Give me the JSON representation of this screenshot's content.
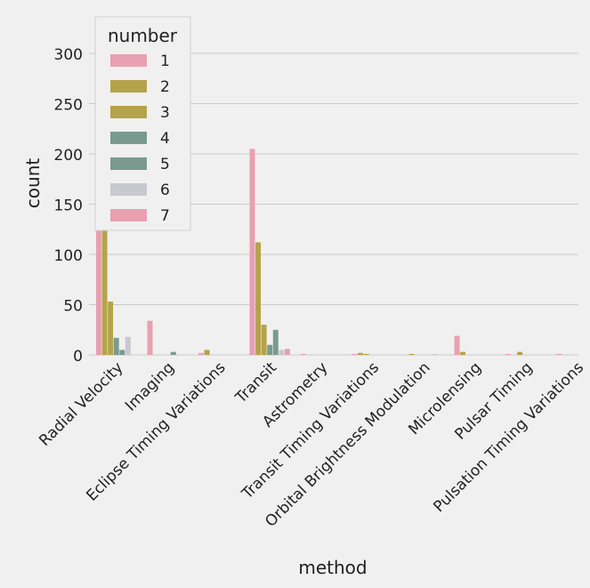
{
  "chart_data": {
    "type": "bar",
    "xlabel": "method",
    "ylabel": "count",
    "ylim": [
      0,
      330
    ],
    "yticks": [
      0,
      50,
      100,
      150,
      200,
      250,
      300
    ],
    "grid": "horizontal",
    "legend": {
      "title": "number",
      "placement": "top-left"
    },
    "categories": [
      "Radial Velocity",
      "Imaging",
      "Eclipse Timing Variations",
      "Transit",
      "Astrometry",
      "Transit Timing Variations",
      "Orbital Brightness Modulation",
      "Microlensing",
      "Pulsar Timing",
      "Pulsation Timing Variations"
    ],
    "series": [
      {
        "name": "1",
        "color": "#e8a0b0",
        "values": [
          328,
          34,
          2,
          205,
          1,
          1,
          0,
          19,
          1,
          1
        ]
      },
      {
        "name": "2",
        "color": "#b5a34a",
        "values": [
          127,
          0,
          5,
          112,
          0,
          2,
          1,
          3,
          0,
          0
        ]
      },
      {
        "name": "3",
        "color": "#b5a34a",
        "values": [
          53,
          0,
          0,
          30,
          0,
          1,
          0,
          0,
          3,
          0
        ]
      },
      {
        "name": "4",
        "color": "#7a9a90",
        "values": [
          17,
          0,
          0,
          10,
          0,
          0,
          0,
          0,
          0,
          0
        ]
      },
      {
        "name": "5",
        "color": "#7a9a90",
        "values": [
          5,
          3,
          0,
          25,
          0,
          0,
          0,
          0,
          0,
          0
        ]
      },
      {
        "name": "6",
        "color": "#c8c8d0",
        "values": [
          18,
          0,
          0,
          5,
          0,
          0,
          1,
          0,
          0,
          0
        ]
      },
      {
        "name": "7",
        "color": "#e8a0b0",
        "values": [
          0,
          0,
          0,
          6,
          0,
          0,
          0,
          0,
          0,
          0
        ]
      }
    ]
  }
}
